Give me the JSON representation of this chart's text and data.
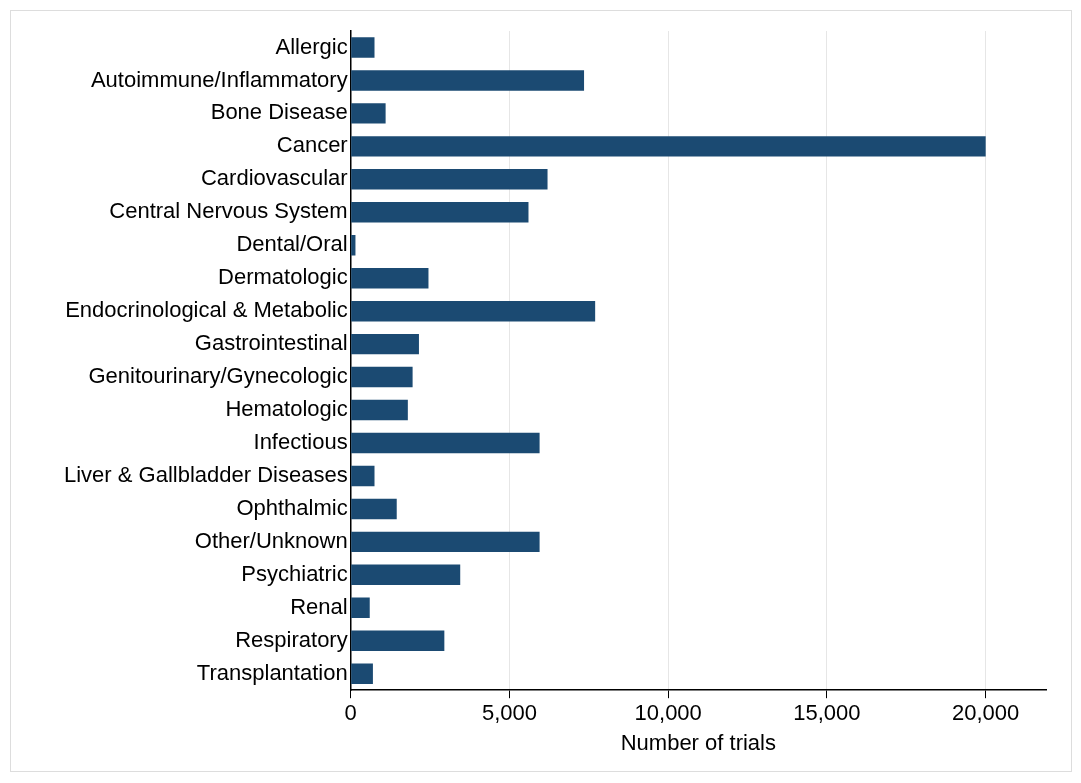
{
  "chart_data": {
    "type": "bar",
    "orientation": "horizontal",
    "xlabel": "Number of trials",
    "categories": [
      "Allergic",
      "Autoimmune/Inflammatory",
      "Bone Disease",
      "Cancer",
      "Cardiovascular",
      "Central Nervous System",
      "Dental/Oral",
      "Dermatologic",
      "Endocrinological & Metabolic",
      "Gastrointestinal",
      "Genitourinary/Gynecologic",
      "Hematologic",
      "Infectious",
      "Liver & Gallbladder Diseases",
      "Ophthalmic",
      "Other/Unknown",
      "Psychiatric",
      "Renal",
      "Respiratory",
      "Transplantation"
    ],
    "values": [
      750,
      7350,
      1100,
      20000,
      6200,
      5600,
      150,
      2450,
      7700,
      2150,
      1950,
      1800,
      5950,
      750,
      1450,
      5950,
      3450,
      600,
      2950,
      700
    ],
    "color": "#1b4a72",
    "xlim": [
      0,
      21900
    ],
    "xticks": [
      {
        "value": 0,
        "label": "0"
      },
      {
        "value": 5000,
        "label": "5,000"
      },
      {
        "value": 10000,
        "label": "10,000"
      },
      {
        "value": 15000,
        "label": "15,000"
      },
      {
        "value": 20000,
        "label": "20,000"
      }
    ],
    "grid": "x",
    "legend": false
  }
}
